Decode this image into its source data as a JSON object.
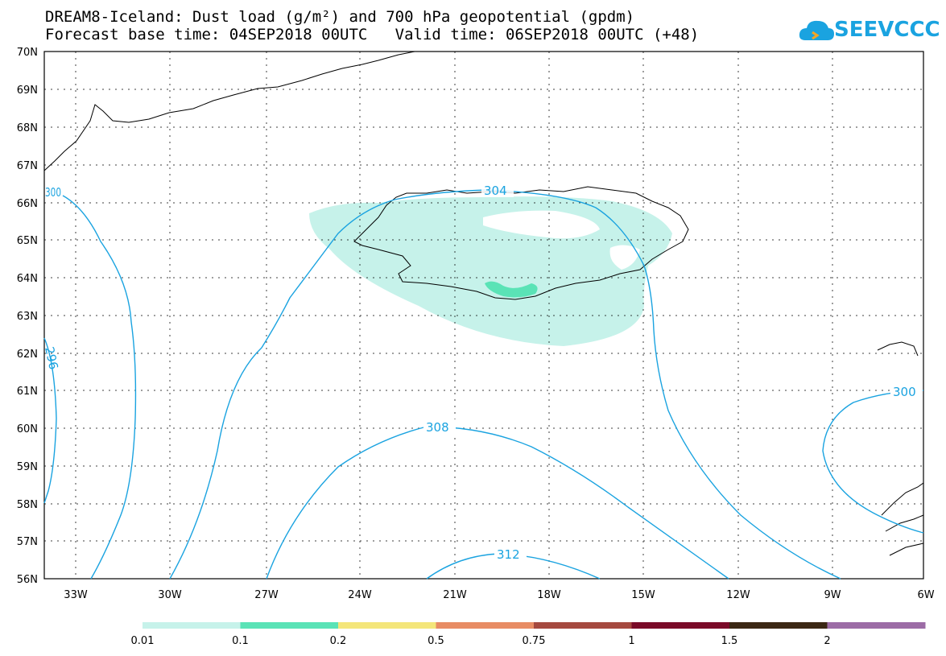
{
  "title": {
    "line1": "DREAM8-Iceland: Dust load (g/m²) and 700 hPa geopotential (gpdm)",
    "line2": "Forecast base time: 04SEP2018 00UTC   Valid time: 06SEP2018 00UTC (+48)"
  },
  "logo": {
    "text": "SEEVCCC",
    "icon": "cloud-icon",
    "color": "#1aa3e0"
  },
  "axes": {
    "lat_labels": [
      "70N",
      "69N",
      "68N",
      "67N",
      "66N",
      "65N",
      "64N",
      "63N",
      "62N",
      "61N",
      "60N",
      "59N",
      "58N",
      "57N",
      "56N"
    ],
    "lon_labels": [
      "33W",
      "30W",
      "27W",
      "24W",
      "21W",
      "18W",
      "15W",
      "12W",
      "9W",
      "6W"
    ]
  },
  "contours": {
    "labels": [
      "304",
      "308",
      "312",
      "300",
      "296",
      "300"
    ],
    "color": "#1aa3e0"
  },
  "colorbar": {
    "colors": [
      "#c6f2ea",
      "#5ae3b6",
      "#f4e67a",
      "#e88c64",
      "#a5493f",
      "#7a0a28",
      "#3b2714",
      "#9c6ca6"
    ],
    "labels": [
      "0.01",
      "0.1",
      "0.2",
      "0.5",
      "0.75",
      "1",
      "1.5",
      "2"
    ]
  }
}
